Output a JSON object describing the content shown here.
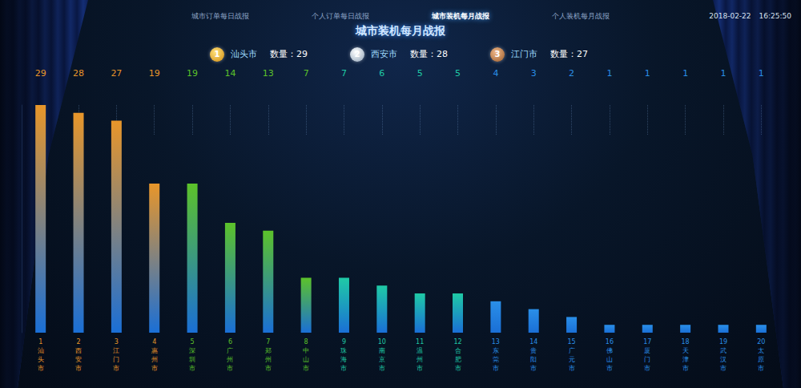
{
  "header": {
    "tabs": [
      "城市订单每日战报",
      "个人订单每日战报",
      "城市装机每月战报",
      "个人装机每月战报"
    ],
    "active_tab": 2,
    "date": "2018-02-22",
    "time": "16:25:50",
    "title": "城市装机每月战报"
  },
  "podium": [
    {
      "rank": 1,
      "city": "汕头市",
      "label": "数量：",
      "value": 29
    },
    {
      "rank": 2,
      "city": "西安市",
      "label": "数量：",
      "value": 28
    },
    {
      "rank": 3,
      "city": "江门市",
      "label": "数量：",
      "value": 27
    }
  ],
  "chart_data": {
    "type": "bar",
    "ranks": [
      1,
      2,
      3,
      4,
      5,
      6,
      7,
      8,
      9,
      10,
      11,
      12,
      13,
      14,
      15,
      16,
      17,
      18,
      19,
      20
    ],
    "categories": [
      "汕头市",
      "西安市",
      "江门市",
      "惠州市",
      "深圳市",
      "广州市",
      "郑州市",
      "中山市",
      "珠海市",
      "南京市",
      "温州市",
      "合肥市",
      "东莞市",
      "贵阳市",
      "广元市",
      "佛山市",
      "厦门市",
      "天津市",
      "武汉市",
      "太原市"
    ],
    "values": [
      29,
      28,
      27,
      19,
      19,
      14,
      13,
      7,
      7,
      6,
      5,
      5,
      4,
      3,
      2,
      1,
      1,
      1,
      1,
      1
    ],
    "colors": [
      "#e8962a",
      "#e8962a",
      "#e8962a",
      "#e8962a",
      "#5cc22a",
      "#5cc22a",
      "#5cc22a",
      "#5cc22a",
      "#1fcaa6",
      "#1fcaa6",
      "#1fcaa6",
      "#1fcaa6",
      "#2a8fe8",
      "#2a8fe8",
      "#2a8fe8",
      "#2a8fe8",
      "#2a8fe8",
      "#2a8fe8",
      "#2a8fe8",
      "#2a8fe8"
    ],
    "ylim": [
      0,
      29
    ],
    "grid": false,
    "data_labels": true,
    "tick_labels": "x"
  }
}
